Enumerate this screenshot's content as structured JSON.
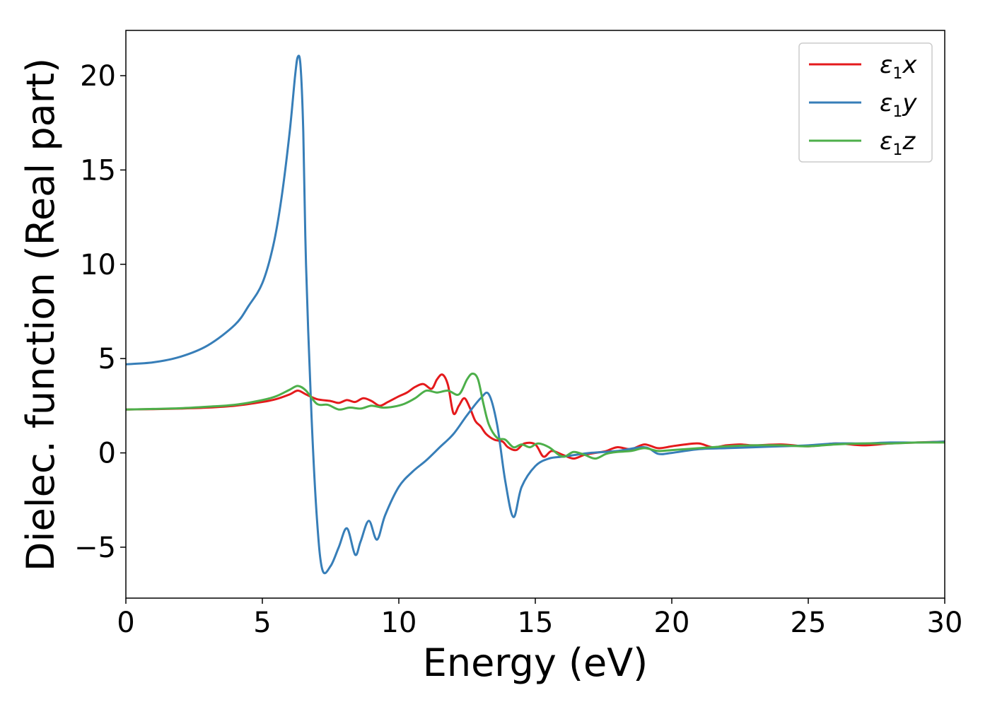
{
  "chart_data": {
    "type": "line",
    "title": "",
    "xlabel": "Energy (eV)",
    "ylabel": "Dielec. function (Real part)",
    "xlim": [
      0,
      30
    ],
    "ylim": [
      -7.7,
      22.4
    ],
    "xticks": [
      0,
      5,
      10,
      15,
      20,
      25,
      30
    ],
    "xtick_labels": [
      "0",
      "5",
      "10",
      "15",
      "20",
      "25",
      "30"
    ],
    "yticks": [
      -5,
      0,
      5,
      10,
      15,
      20
    ],
    "ytick_labels": [
      "−5",
      "0",
      "5",
      "10",
      "15",
      "20"
    ],
    "grid": false,
    "legend_position": "top-right",
    "series": [
      {
        "name": "ε1x",
        "legend_main": "ε",
        "legend_sub": "1",
        "legend_suffix": "x",
        "color": "#e41a1c",
        "x": [
          0,
          1,
          2,
          3,
          4,
          5,
          5.5,
          6,
          6.3,
          6.6,
          7,
          7.5,
          7.8,
          8.1,
          8.4,
          8.7,
          9.0,
          9.3,
          9.6,
          10.0,
          10.3,
          10.6,
          10.9,
          11.2,
          11.4,
          11.6,
          11.8,
          12.0,
          12.2,
          12.4,
          12.6,
          12.8,
          13.0,
          13.2,
          13.5,
          13.8,
          14.0,
          14.3,
          14.6,
          15.0,
          15.3,
          15.6,
          16.0,
          16.4,
          16.8,
          17.2,
          17.6,
          18.0,
          18.5,
          19.0,
          19.5,
          20.0,
          20.5,
          21.0,
          21.5,
          22.0,
          22.5,
          23.0,
          24.0,
          25.0,
          26.0,
          27.0,
          28.0,
          29.0,
          30.0
        ],
        "values": [
          2.3,
          2.32,
          2.35,
          2.4,
          2.5,
          2.7,
          2.85,
          3.1,
          3.3,
          3.1,
          2.85,
          2.75,
          2.65,
          2.8,
          2.7,
          2.9,
          2.75,
          2.5,
          2.7,
          3.0,
          3.2,
          3.5,
          3.65,
          3.4,
          3.9,
          4.15,
          3.6,
          2.1,
          2.5,
          2.9,
          2.4,
          1.7,
          1.4,
          1.0,
          0.7,
          0.6,
          0.3,
          0.15,
          0.5,
          0.45,
          -0.2,
          0.1,
          -0.1,
          -0.3,
          -0.1,
          0.0,
          0.1,
          0.3,
          0.2,
          0.45,
          0.25,
          0.35,
          0.45,
          0.5,
          0.3,
          0.4,
          0.45,
          0.4,
          0.45,
          0.35,
          0.5,
          0.4,
          0.5,
          0.55,
          0.6
        ]
      },
      {
        "name": "ε1y",
        "legend_main": "ε",
        "legend_sub": "1",
        "legend_suffix": "y",
        "color": "#377eb8",
        "x": [
          0,
          1,
          2,
          3,
          4,
          4.5,
          5,
          5.4,
          5.7,
          6.0,
          6.2,
          6.3,
          6.4,
          6.5,
          6.6,
          6.8,
          7.0,
          7.2,
          7.5,
          7.8,
          8.1,
          8.4,
          8.6,
          8.9,
          9.2,
          9.5,
          10.0,
          10.5,
          11.0,
          11.5,
          12.0,
          12.5,
          13.0,
          13.3,
          13.6,
          13.9,
          14.2,
          14.5,
          15.0,
          15.5,
          16.0,
          16.5,
          17.0,
          18.0,
          19.0,
          19.5,
          20.0,
          21.0,
          22.0,
          23.0,
          24.0,
          25.0,
          26.0,
          27.0,
          28.0,
          29.0,
          30.0
        ],
        "values": [
          4.7,
          4.8,
          5.1,
          5.7,
          6.8,
          7.8,
          9.0,
          11.0,
          13.5,
          17.0,
          20.0,
          21.0,
          20.5,
          17.0,
          10.0,
          2.0,
          -3.5,
          -6.2,
          -6.0,
          -5.0,
          -4.0,
          -5.4,
          -4.7,
          -3.6,
          -4.6,
          -3.3,
          -1.8,
          -1.0,
          -0.4,
          0.3,
          1.0,
          2.0,
          2.9,
          3.1,
          1.5,
          -1.5,
          -3.4,
          -1.8,
          -0.7,
          -0.3,
          -0.2,
          -0.1,
          0.0,
          0.1,
          0.3,
          -0.05,
          0.0,
          0.2,
          0.25,
          0.3,
          0.35,
          0.4,
          0.5,
          0.5,
          0.55,
          0.55,
          0.6
        ]
      },
      {
        "name": "ε1z",
        "legend_main": "ε",
        "legend_sub": "1",
        "legend_suffix": "z",
        "color": "#4daf4a",
        "x": [
          0,
          1,
          2,
          3,
          4,
          5,
          5.5,
          6,
          6.3,
          6.6,
          7,
          7.4,
          7.8,
          8.2,
          8.6,
          9.0,
          9.4,
          9.8,
          10.2,
          10.6,
          11.0,
          11.4,
          11.8,
          12.2,
          12.5,
          12.7,
          12.9,
          13.1,
          13.3,
          13.6,
          13.9,
          14.2,
          14.5,
          14.8,
          15.1,
          15.5,
          16.0,
          16.4,
          16.8,
          17.2,
          17.6,
          18.0,
          18.5,
          19.0,
          19.5,
          20.0,
          21.0,
          22.0,
          23.0,
          24.0,
          25.0,
          26.0,
          27.0,
          28.0,
          29.0,
          30.0
        ],
        "values": [
          2.3,
          2.33,
          2.37,
          2.45,
          2.55,
          2.8,
          3.0,
          3.35,
          3.55,
          3.3,
          2.6,
          2.55,
          2.3,
          2.4,
          2.35,
          2.5,
          2.4,
          2.45,
          2.6,
          2.9,
          3.3,
          3.2,
          3.3,
          3.1,
          3.9,
          4.2,
          3.9,
          2.6,
          1.5,
          0.8,
          0.7,
          0.3,
          0.45,
          0.3,
          0.5,
          0.3,
          -0.2,
          0.05,
          -0.1,
          -0.3,
          -0.05,
          0.05,
          0.1,
          0.25,
          0.1,
          0.15,
          0.25,
          0.35,
          0.4,
          0.4,
          0.35,
          0.45,
          0.5,
          0.5,
          0.55,
          0.55
        ]
      }
    ]
  }
}
